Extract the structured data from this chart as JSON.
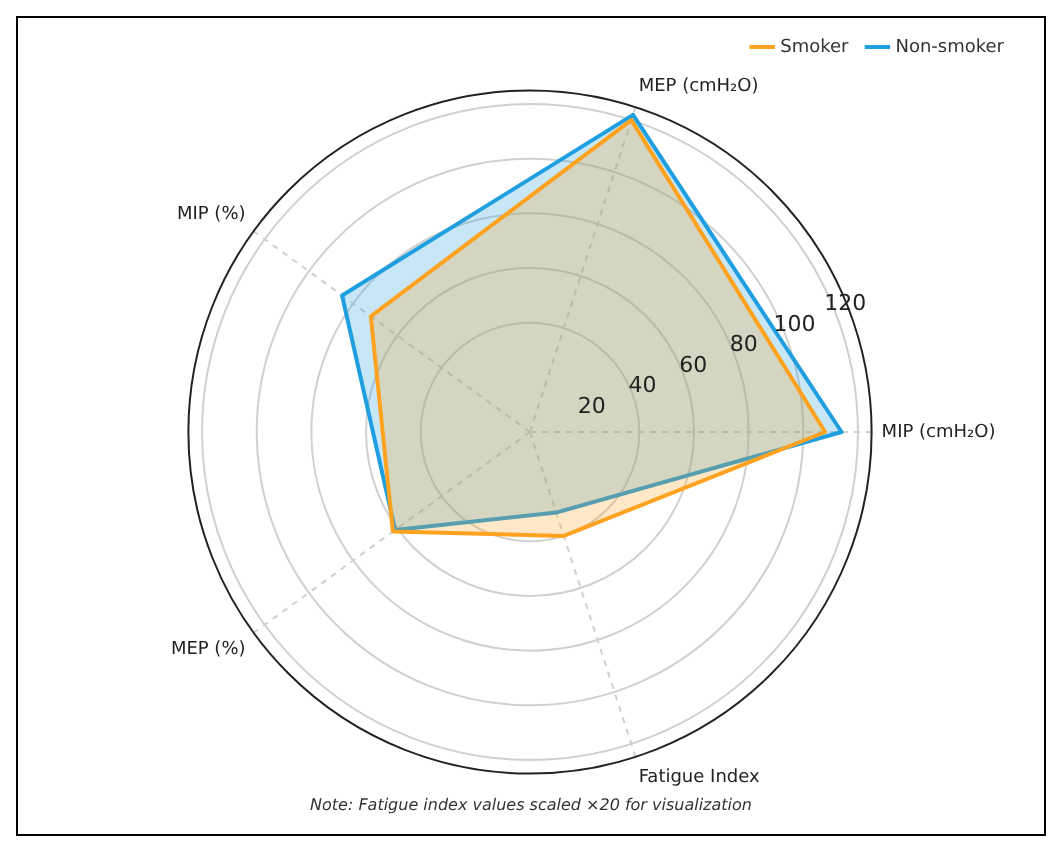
{
  "chart_data": {
    "type": "radar",
    "categories": [
      "MEP (cmH₂O)",
      "MIP (cmH₂O)",
      "Fatigue Index",
      "MEP (%)",
      "MIP (%)"
    ],
    "series": [
      {
        "name": "Smoker",
        "color": "#ffa21f",
        "values": [
          120,
          108,
          40,
          62,
          72
        ]
      },
      {
        "name": "Non-smoker",
        "color": "#1f9ee0",
        "values": [
          122,
          114,
          31,
          61,
          85
        ]
      }
    ],
    "ylim": [
      0,
      125
    ],
    "yticks": [
      20,
      40,
      60,
      80,
      100,
      120
    ],
    "grid": true,
    "legend": "top right",
    "marker": "none",
    "line_style": "solid",
    "annotations": [
      "Note: Fatigue index values scaled ×20 for visualization"
    ]
  }
}
